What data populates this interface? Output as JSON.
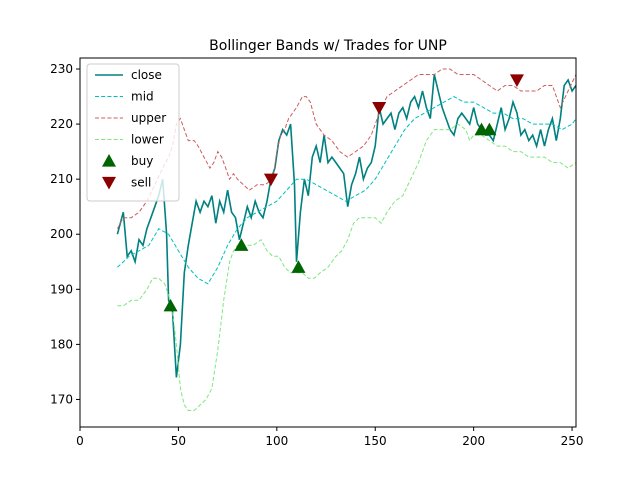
{
  "chart_data": {
    "type": "line",
    "title": "Bollinger Bands w/ Trades for UNP",
    "xlabel": "",
    "ylabel": "",
    "xlim": [
      0,
      252
    ],
    "ylim": [
      165,
      232
    ],
    "x_ticks": [
      0,
      50,
      100,
      150,
      200,
      250
    ],
    "y_ticks": [
      170,
      180,
      190,
      200,
      210,
      220,
      230
    ],
    "grid": false,
    "legend_position": "top-left",
    "series": [
      {
        "name": "close",
        "style": "solid",
        "color": "#008080",
        "points": [
          [
            19,
            200
          ],
          [
            22,
            204
          ],
          [
            24,
            196
          ],
          [
            26,
            197
          ],
          [
            28,
            195
          ],
          [
            30,
            199
          ],
          [
            32,
            198
          ],
          [
            34,
            201
          ],
          [
            36,
            203
          ],
          [
            38,
            205
          ],
          [
            40,
            207
          ],
          [
            42,
            210
          ],
          [
            44,
            200
          ],
          [
            45,
            188
          ],
          [
            47,
            186
          ],
          [
            49,
            174
          ],
          [
            51,
            180
          ],
          [
            53,
            193
          ],
          [
            55,
            198
          ],
          [
            57,
            202
          ],
          [
            59,
            206
          ],
          [
            61,
            204
          ],
          [
            63,
            206
          ],
          [
            65,
            205
          ],
          [
            67,
            207
          ],
          [
            69,
            202
          ],
          [
            71,
            206
          ],
          [
            73,
            204
          ],
          [
            75,
            208
          ],
          [
            77,
            204
          ],
          [
            79,
            203
          ],
          [
            81,
            199
          ],
          [
            83,
            202
          ],
          [
            85,
            205
          ],
          [
            87,
            203
          ],
          [
            89,
            206
          ],
          [
            91,
            204
          ],
          [
            93,
            203
          ],
          [
            95,
            206
          ],
          [
            97,
            210
          ],
          [
            99,
            212
          ],
          [
            101,
            217
          ],
          [
            103,
            219
          ],
          [
            105,
            218
          ],
          [
            107,
            220
          ],
          [
            109,
            209
          ],
          [
            110,
            195
          ],
          [
            112,
            204
          ],
          [
            114,
            210
          ],
          [
            116,
            207
          ],
          [
            118,
            214
          ],
          [
            120,
            216
          ],
          [
            122,
            213
          ],
          [
            124,
            218
          ],
          [
            126,
            213
          ],
          [
            128,
            214
          ],
          [
            130,
            213
          ],
          [
            132,
            212
          ],
          [
            134,
            211
          ],
          [
            136,
            205
          ],
          [
            138,
            209
          ],
          [
            140,
            211
          ],
          [
            142,
            214
          ],
          [
            144,
            210
          ],
          [
            146,
            212
          ],
          [
            148,
            213
          ],
          [
            150,
            216
          ],
          [
            152,
            223
          ],
          [
            154,
            220
          ],
          [
            156,
            221
          ],
          [
            158,
            222
          ],
          [
            160,
            219
          ],
          [
            162,
            222
          ],
          [
            164,
            223
          ],
          [
            166,
            221
          ],
          [
            168,
            224
          ],
          [
            170,
            225
          ],
          [
            172,
            223
          ],
          [
            174,
            226
          ],
          [
            176,
            223
          ],
          [
            178,
            221
          ],
          [
            180,
            229
          ],
          [
            182,
            226
          ],
          [
            184,
            223
          ],
          [
            186,
            221
          ],
          [
            188,
            219
          ],
          [
            190,
            218
          ],
          [
            192,
            221
          ],
          [
            194,
            222
          ],
          [
            196,
            221
          ],
          [
            198,
            220
          ],
          [
            200,
            223
          ],
          [
            202,
            220
          ],
          [
            204,
            219
          ],
          [
            206,
            218
          ],
          [
            208,
            218
          ],
          [
            210,
            217
          ],
          [
            212,
            220
          ],
          [
            214,
            223
          ],
          [
            216,
            219
          ],
          [
            218,
            221
          ],
          [
            220,
            224
          ],
          [
            222,
            222
          ],
          [
            224,
            218
          ],
          [
            226,
            219
          ],
          [
            228,
            217
          ],
          [
            230,
            218
          ],
          [
            232,
            216
          ],
          [
            234,
            219
          ],
          [
            236,
            216
          ],
          [
            238,
            219
          ],
          [
            240,
            221
          ],
          [
            242,
            217
          ],
          [
            244,
            221
          ],
          [
            246,
            227
          ],
          [
            248,
            228
          ],
          [
            250,
            226
          ],
          [
            252,
            227
          ]
        ]
      },
      {
        "name": "mid",
        "style": "dashed",
        "color": "#00bfbf",
        "points": [
          [
            19,
            194
          ],
          [
            25,
            196
          ],
          [
            30,
            197
          ],
          [
            35,
            198
          ],
          [
            40,
            201
          ],
          [
            45,
            200
          ],
          [
            50,
            197
          ],
          [
            55,
            194
          ],
          [
            60,
            192
          ],
          [
            65,
            191
          ],
          [
            70,
            194
          ],
          [
            75,
            198
          ],
          [
            80,
            201
          ],
          [
            85,
            203
          ],
          [
            90,
            204
          ],
          [
            95,
            205
          ],
          [
            100,
            206
          ],
          [
            105,
            208
          ],
          [
            110,
            210
          ],
          [
            115,
            210
          ],
          [
            120,
            209
          ],
          [
            125,
            208
          ],
          [
            130,
            207
          ],
          [
            135,
            206
          ],
          [
            140,
            207
          ],
          [
            145,
            208
          ],
          [
            150,
            210
          ],
          [
            155,
            213
          ],
          [
            160,
            216
          ],
          [
            165,
            219
          ],
          [
            170,
            221
          ],
          [
            175,
            222
          ],
          [
            180,
            223
          ],
          [
            185,
            224
          ],
          [
            190,
            225
          ],
          [
            195,
            224
          ],
          [
            200,
            224
          ],
          [
            205,
            223
          ],
          [
            210,
            222
          ],
          [
            215,
            222
          ],
          [
            220,
            221
          ],
          [
            225,
            221
          ],
          [
            230,
            220
          ],
          [
            235,
            220
          ],
          [
            240,
            220
          ],
          [
            245,
            219
          ],
          [
            250,
            220
          ],
          [
            252,
            221
          ]
        ]
      },
      {
        "name": "upper",
        "style": "dashed",
        "color": "#cd5c5c",
        "points": [
          [
            19,
            201
          ],
          [
            22,
            203
          ],
          [
            26,
            203
          ],
          [
            30,
            204
          ],
          [
            34,
            206
          ],
          [
            38,
            209
          ],
          [
            42,
            212
          ],
          [
            45,
            214
          ],
          [
            47,
            216
          ],
          [
            49,
            220
          ],
          [
            51,
            221
          ],
          [
            53,
            219
          ],
          [
            55,
            217
          ],
          [
            58,
            217
          ],
          [
            60,
            216
          ],
          [
            63,
            214
          ],
          [
            66,
            212
          ],
          [
            68,
            213
          ],
          [
            70,
            215
          ],
          [
            72,
            214
          ],
          [
            74,
            212
          ],
          [
            76,
            210
          ],
          [
            78,
            211
          ],
          [
            80,
            210
          ],
          [
            83,
            209
          ],
          [
            86,
            208
          ],
          [
            90,
            209
          ],
          [
            94,
            209
          ],
          [
            98,
            210
          ],
          [
            100,
            215
          ],
          [
            102,
            218
          ],
          [
            104,
            219
          ],
          [
            106,
            221
          ],
          [
            108,
            222
          ],
          [
            110,
            223
          ],
          [
            113,
            225
          ],
          [
            115,
            225
          ],
          [
            117,
            224
          ],
          [
            120,
            220
          ],
          [
            124,
            218
          ],
          [
            128,
            217
          ],
          [
            132,
            215
          ],
          [
            136,
            214
          ],
          [
            140,
            215
          ],
          [
            144,
            216
          ],
          [
            148,
            218
          ],
          [
            152,
            222
          ],
          [
            156,
            225
          ],
          [
            160,
            226
          ],
          [
            164,
            227
          ],
          [
            168,
            228
          ],
          [
            172,
            229
          ],
          [
            176,
            229
          ],
          [
            180,
            229
          ],
          [
            184,
            230
          ],
          [
            188,
            230
          ],
          [
            192,
            229
          ],
          [
            196,
            229
          ],
          [
            200,
            229
          ],
          [
            204,
            228
          ],
          [
            208,
            227
          ],
          [
            212,
            226
          ],
          [
            216,
            227
          ],
          [
            220,
            227
          ],
          [
            224,
            226
          ],
          [
            228,
            226
          ],
          [
            232,
            226
          ],
          [
            236,
            227
          ],
          [
            240,
            227
          ],
          [
            244,
            223
          ],
          [
            248,
            226
          ],
          [
            252,
            229
          ]
        ]
      },
      {
        "name": "lower",
        "style": "dashed",
        "color": "#7fe67f",
        "points": [
          [
            19,
            187
          ],
          [
            22,
            187
          ],
          [
            26,
            188
          ],
          [
            30,
            188
          ],
          [
            34,
            190
          ],
          [
            37,
            192
          ],
          [
            40,
            192
          ],
          [
            43,
            191
          ],
          [
            45,
            189
          ],
          [
            47,
            186
          ],
          [
            49,
            180
          ],
          [
            51,
            172
          ],
          [
            53,
            169
          ],
          [
            55,
            168
          ],
          [
            58,
            168
          ],
          [
            61,
            169
          ],
          [
            64,
            170
          ],
          [
            67,
            172
          ],
          [
            70,
            179
          ],
          [
            73,
            188
          ],
          [
            76,
            195
          ],
          [
            78,
            197
          ],
          [
            80,
            198
          ],
          [
            84,
            198
          ],
          [
            88,
            198
          ],
          [
            92,
            199
          ],
          [
            95,
            197
          ],
          [
            98,
            196
          ],
          [
            101,
            196
          ],
          [
            104,
            194
          ],
          [
            107,
            193
          ],
          [
            110,
            193
          ],
          [
            113,
            193
          ],
          [
            116,
            192
          ],
          [
            119,
            192
          ],
          [
            122,
            193
          ],
          [
            126,
            194
          ],
          [
            130,
            196
          ],
          [
            133,
            197
          ],
          [
            136,
            199
          ],
          [
            139,
            202
          ],
          [
            142,
            203
          ],
          [
            145,
            203
          ],
          [
            150,
            203
          ],
          [
            153,
            202
          ],
          [
            156,
            204
          ],
          [
            160,
            206
          ],
          [
            164,
            207
          ],
          [
            168,
            210
          ],
          [
            172,
            213
          ],
          [
            176,
            217
          ],
          [
            180,
            219
          ],
          [
            184,
            219
          ],
          [
            188,
            219
          ],
          [
            192,
            220
          ],
          [
            196,
            219
          ],
          [
            198,
            217
          ],
          [
            200,
            218
          ],
          [
            204,
            218
          ],
          [
            208,
            217
          ],
          [
            212,
            216
          ],
          [
            216,
            216
          ],
          [
            220,
            215
          ],
          [
            224,
            215
          ],
          [
            228,
            214
          ],
          [
            232,
            214
          ],
          [
            236,
            214
          ],
          [
            240,
            213
          ],
          [
            244,
            213
          ],
          [
            248,
            212
          ],
          [
            252,
            213
          ]
        ]
      }
    ],
    "markers": [
      {
        "name": "buy",
        "shape": "triangle-up",
        "color": "#006400",
        "points": [
          [
            46,
            187
          ],
          [
            82,
            198
          ],
          [
            111,
            194
          ],
          [
            204,
            219
          ],
          [
            208,
            219
          ]
        ]
      },
      {
        "name": "sell",
        "shape": "triangle-down",
        "color": "#8b0000",
        "points": [
          [
            97,
            210
          ],
          [
            152,
            223
          ],
          [
            222,
            228
          ]
        ]
      }
    ]
  }
}
